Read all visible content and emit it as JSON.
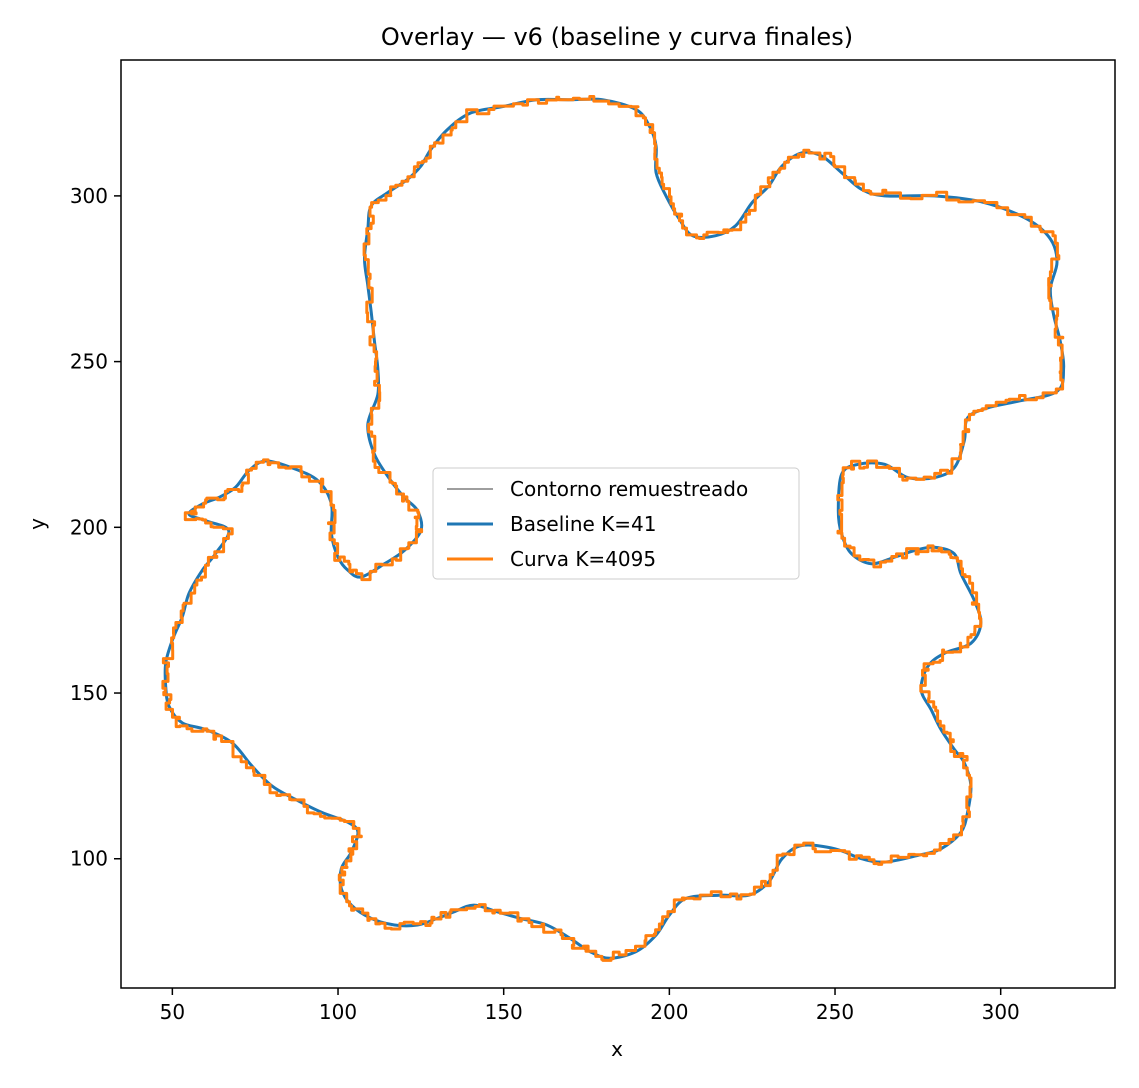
{
  "chart_data": {
    "type": "line",
    "title": "Overlay — v6 (baseline y curva finales)",
    "xlabel": "x",
    "ylabel": "y",
    "xlim": [
      34.5,
      334.5
    ],
    "ylim": [
      61,
      341
    ],
    "x_ticks": [
      50,
      100,
      150,
      200,
      250,
      300
    ],
    "y_ticks": [
      100,
      150,
      200,
      250,
      300
    ],
    "grid": false,
    "legend_position": "center",
    "series": [
      {
        "name": "Contorno remuestreado",
        "color": "#7f7f7f",
        "style": "thin",
        "points": []
      },
      {
        "name": "Baseline K=41",
        "color": "#1f77b4",
        "style": "smooth",
        "points": [
          [
            140,
            325
          ],
          [
            150,
            327
          ],
          [
            160,
            329
          ],
          [
            170,
            329
          ],
          [
            180,
            329
          ],
          [
            190,
            326
          ],
          [
            194,
            321
          ],
          [
            196,
            315
          ],
          [
            196,
            307
          ],
          [
            199,
            300
          ],
          [
            203,
            293
          ],
          [
            207,
            288
          ],
          [
            214,
            288
          ],
          [
            220,
            291
          ],
          [
            225,
            298
          ],
          [
            230,
            303
          ],
          [
            234,
            309
          ],
          [
            240,
            313
          ],
          [
            246,
            312
          ],
          [
            252,
            307
          ],
          [
            258,
            302
          ],
          [
            265,
            300
          ],
          [
            280,
            300
          ],
          [
            295,
            298
          ],
          [
            308,
            293
          ],
          [
            315,
            287
          ],
          [
            317,
            280
          ],
          [
            315,
            272
          ],
          [
            316,
            264
          ],
          [
            318,
            256
          ],
          [
            319,
            248
          ],
          [
            317,
            241
          ],
          [
            305,
            238
          ],
          [
            296,
            236
          ],
          [
            290,
            233
          ],
          [
            289,
            226
          ],
          [
            286,
            218
          ],
          [
            280,
            215
          ],
          [
            272,
            215
          ],
          [
            265,
            219
          ],
          [
            257,
            219
          ],
          [
            252,
            216
          ],
          [
            251,
            205
          ],
          [
            252,
            198
          ],
          [
            255,
            192
          ],
          [
            261,
            189
          ],
          [
            268,
            191
          ],
          [
            274,
            193
          ],
          [
            280,
            194
          ],
          [
            286,
            192
          ],
          [
            288,
            186
          ],
          [
            292,
            178
          ],
          [
            294,
            171
          ],
          [
            291,
            165
          ],
          [
            283,
            162
          ],
          [
            278,
            158
          ],
          [
            276,
            151
          ],
          [
            279,
            145
          ],
          [
            282,
            139
          ],
          [
            286,
            133
          ],
          [
            289,
            129
          ],
          [
            291,
            122
          ],
          [
            290,
            114
          ],
          [
            288,
            108
          ],
          [
            282,
            103
          ],
          [
            275,
            101
          ],
          [
            265,
            99
          ],
          [
            258,
            100
          ],
          [
            250,
            103
          ],
          [
            240,
            104
          ],
          [
            234,
            100
          ],
          [
            230,
            93
          ],
          [
            224,
            89
          ],
          [
            215,
            89
          ],
          [
            205,
            88
          ],
          [
            200,
            83
          ],
          [
            196,
            77
          ],
          [
            190,
            72
          ],
          [
            182,
            70
          ],
          [
            176,
            72
          ],
          [
            170,
            76
          ],
          [
            163,
            80
          ],
          [
            155,
            82
          ],
          [
            148,
            84
          ],
          [
            141,
            86
          ],
          [
            135,
            84
          ],
          [
            130,
            82
          ],
          [
            124,
            80
          ],
          [
            117,
            80
          ],
          [
            110,
            82
          ],
          [
            104,
            86
          ],
          [
            101,
            91
          ],
          [
            101,
            97
          ],
          [
            104,
            102
          ],
          [
            106,
            108
          ],
          [
            103,
            111
          ],
          [
            95,
            114
          ],
          [
            87,
            118
          ],
          [
            80,
            122
          ],
          [
            74,
            128
          ],
          [
            68,
            135
          ],
          [
            60,
            139
          ],
          [
            53,
            141
          ],
          [
            49,
            146
          ],
          [
            48,
            152
          ],
          [
            48,
            159
          ],
          [
            50,
            166
          ],
          [
            53,
            173
          ],
          [
            55,
            180
          ],
          [
            59,
            187
          ],
          [
            63,
            192
          ],
          [
            67,
            199
          ],
          [
            60,
            202
          ],
          [
            55,
            204
          ],
          [
            59,
            207
          ],
          [
            64,
            209
          ],
          [
            69,
            212
          ],
          [
            73,
            217
          ],
          [
            78,
            220
          ],
          [
            86,
            218
          ],
          [
            94,
            214
          ],
          [
            98,
            207
          ],
          [
            98,
            198
          ],
          [
            100,
            191
          ],
          [
            103,
            187
          ],
          [
            107,
            185
          ],
          [
            114,
            189
          ],
          [
            120,
            193
          ],
          [
            125,
            199
          ],
          [
            124,
            205
          ],
          [
            120,
            209
          ],
          [
            116,
            214
          ],
          [
            111,
            222
          ],
          [
            109,
            231
          ],
          [
            112,
            240
          ],
          [
            112,
            248
          ],
          [
            111,
            256
          ],
          [
            110,
            265
          ],
          [
            109,
            273
          ],
          [
            108,
            281
          ],
          [
            109,
            290
          ],
          [
            110,
            297
          ],
          [
            115,
            301
          ],
          [
            121,
            305
          ],
          [
            125,
            309
          ],
          [
            128,
            314
          ],
          [
            133,
            320
          ],
          [
            140,
            325
          ]
        ]
      },
      {
        "name": "Curva K=4095",
        "color": "#ff7f0e",
        "style": "jagged",
        "points": [
          [
            140,
            325
          ],
          [
            150,
            327
          ],
          [
            160,
            329
          ],
          [
            170,
            329
          ],
          [
            180,
            329
          ],
          [
            190,
            326
          ],
          [
            194,
            321
          ],
          [
            196,
            315
          ],
          [
            196,
            307
          ],
          [
            199,
            300
          ],
          [
            203,
            293
          ],
          [
            207,
            288
          ],
          [
            214,
            288
          ],
          [
            220,
            291
          ],
          [
            225,
            298
          ],
          [
            230,
            303
          ],
          [
            234,
            309
          ],
          [
            240,
            313
          ],
          [
            246,
            312
          ],
          [
            252,
            307
          ],
          [
            258,
            302
          ],
          [
            265,
            300
          ],
          [
            280,
            300
          ],
          [
            295,
            298
          ],
          [
            308,
            293
          ],
          [
            315,
            287
          ],
          [
            317,
            280
          ],
          [
            315,
            272
          ],
          [
            316,
            264
          ],
          [
            318,
            256
          ],
          [
            319,
            248
          ],
          [
            317,
            241
          ],
          [
            305,
            238
          ],
          [
            296,
            236
          ],
          [
            290,
            233
          ],
          [
            289,
            226
          ],
          [
            286,
            218
          ],
          [
            280,
            215
          ],
          [
            272,
            215
          ],
          [
            265,
            219
          ],
          [
            257,
            219
          ],
          [
            252,
            216
          ],
          [
            251,
            205
          ],
          [
            252,
            198
          ],
          [
            255,
            192
          ],
          [
            261,
            189
          ],
          [
            268,
            191
          ],
          [
            274,
            193
          ],
          [
            280,
            194
          ],
          [
            286,
            192
          ],
          [
            288,
            186
          ],
          [
            292,
            178
          ],
          [
            294,
            171
          ],
          [
            291,
            165
          ],
          [
            283,
            162
          ],
          [
            278,
            158
          ],
          [
            276,
            151
          ],
          [
            279,
            145
          ],
          [
            282,
            139
          ],
          [
            286,
            133
          ],
          [
            289,
            129
          ],
          [
            291,
            122
          ],
          [
            290,
            114
          ],
          [
            288,
            108
          ],
          [
            282,
            103
          ],
          [
            275,
            101
          ],
          [
            265,
            99
          ],
          [
            258,
            100
          ],
          [
            250,
            103
          ],
          [
            240,
            104
          ],
          [
            234,
            100
          ],
          [
            230,
            93
          ],
          [
            224,
            89
          ],
          [
            215,
            89
          ],
          [
            205,
            88
          ],
          [
            200,
            83
          ],
          [
            196,
            77
          ],
          [
            190,
            72
          ],
          [
            182,
            70
          ],
          [
            176,
            72
          ],
          [
            170,
            76
          ],
          [
            163,
            80
          ],
          [
            155,
            82
          ],
          [
            148,
            84
          ],
          [
            141,
            86
          ],
          [
            135,
            84
          ],
          [
            130,
            82
          ],
          [
            124,
            80
          ],
          [
            117,
            80
          ],
          [
            110,
            82
          ],
          [
            104,
            86
          ],
          [
            101,
            91
          ],
          [
            101,
            97
          ],
          [
            104,
            102
          ],
          [
            106,
            108
          ],
          [
            103,
            111
          ],
          [
            95,
            114
          ],
          [
            87,
            118
          ],
          [
            80,
            122
          ],
          [
            74,
            128
          ],
          [
            68,
            135
          ],
          [
            60,
            139
          ],
          [
            53,
            141
          ],
          [
            49,
            146
          ],
          [
            48,
            152
          ],
          [
            48,
            159
          ],
          [
            50,
            166
          ],
          [
            53,
            173
          ],
          [
            55,
            180
          ],
          [
            59,
            187
          ],
          [
            63,
            192
          ],
          [
            67,
            199
          ],
          [
            60,
            202
          ],
          [
            55,
            204
          ],
          [
            59,
            207
          ],
          [
            64,
            209
          ],
          [
            69,
            212
          ],
          [
            73,
            217
          ],
          [
            78,
            220
          ],
          [
            86,
            218
          ],
          [
            94,
            214
          ],
          [
            98,
            207
          ],
          [
            98,
            198
          ],
          [
            100,
            191
          ],
          [
            103,
            187
          ],
          [
            107,
            185
          ],
          [
            114,
            189
          ],
          [
            120,
            193
          ],
          [
            125,
            199
          ],
          [
            124,
            205
          ],
          [
            120,
            209
          ],
          [
            116,
            214
          ],
          [
            111,
            222
          ],
          [
            109,
            231
          ],
          [
            112,
            240
          ],
          [
            112,
            248
          ],
          [
            111,
            256
          ],
          [
            110,
            265
          ],
          [
            109,
            273
          ],
          [
            108,
            281
          ],
          [
            109,
            290
          ],
          [
            110,
            297
          ],
          [
            115,
            301
          ],
          [
            121,
            305
          ],
          [
            125,
            309
          ],
          [
            128,
            314
          ],
          [
            133,
            320
          ],
          [
            140,
            325
          ]
        ]
      }
    ]
  }
}
